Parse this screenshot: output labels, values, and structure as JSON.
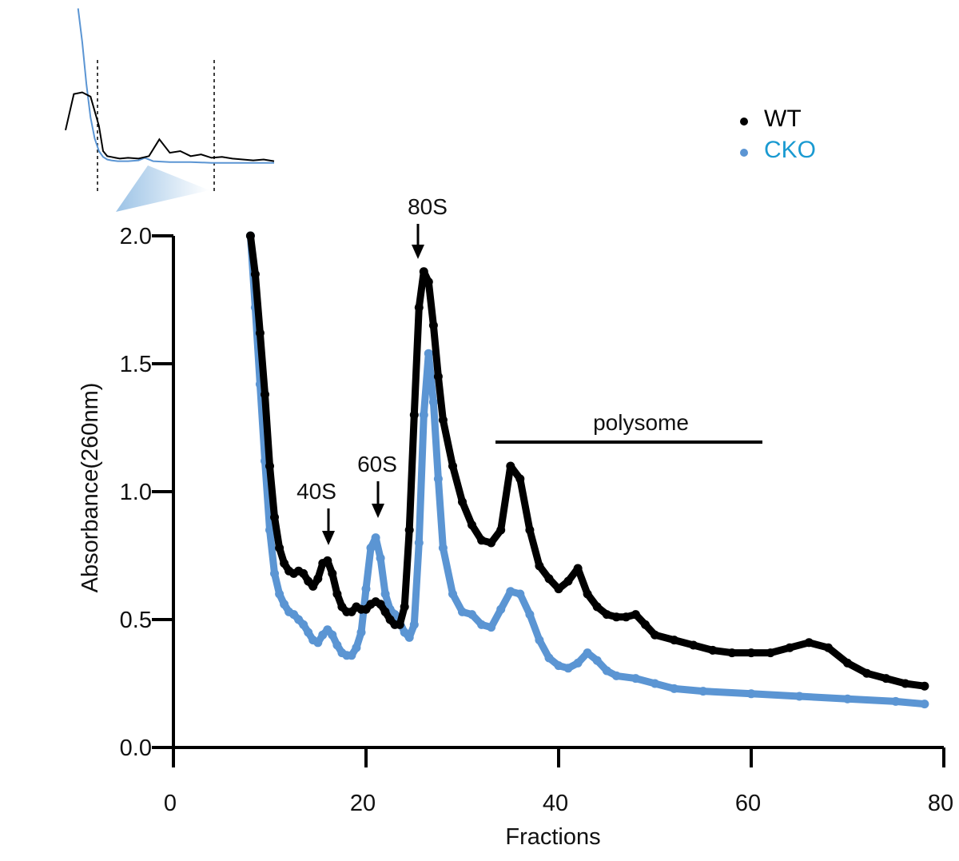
{
  "chart_data": {
    "type": "line",
    "title": "",
    "xlabel": "Fractions",
    "ylabel": "Absorbance(260nm)",
    "xlim": [
      0,
      80
    ],
    "ylim": [
      0,
      2.0
    ],
    "x_ticks": [
      0,
      20,
      40,
      60,
      80
    ],
    "y_ticks": [
      0.0,
      0.5,
      1.0,
      1.5,
      2.0
    ],
    "x_tick_labels": [
      "0",
      "20",
      "40",
      "60",
      "80"
    ],
    "y_tick_labels": [
      "0.0",
      "0.5",
      "1.0",
      "1.5",
      "2.0"
    ],
    "grid": false,
    "legend_position": "top-right",
    "series": [
      {
        "name": "WT",
        "color": "#000000",
        "x": [
          8,
          8.5,
          9,
          9.5,
          10,
          10.5,
          11,
          11.5,
          12,
          12.5,
          13,
          13.5,
          14,
          14.5,
          15,
          15.5,
          16,
          16.5,
          17,
          17.5,
          18,
          18.5,
          19,
          19.5,
          20,
          20.5,
          21,
          21.5,
          22,
          22.5,
          23,
          23.5,
          24,
          24.5,
          25,
          25.5,
          26,
          26.5,
          27,
          27.5,
          28,
          29,
          30,
          31,
          32,
          33,
          34,
          35,
          36,
          37,
          38,
          39,
          40,
          41,
          42,
          43,
          44,
          45,
          46,
          47,
          48,
          49,
          50,
          52,
          54,
          56,
          58,
          60,
          62,
          64,
          66,
          68,
          70,
          72,
          74,
          76,
          78
        ],
        "y": [
          2.0,
          1.85,
          1.62,
          1.38,
          1.1,
          0.9,
          0.78,
          0.72,
          0.69,
          0.68,
          0.69,
          0.68,
          0.65,
          0.63,
          0.66,
          0.72,
          0.73,
          0.68,
          0.6,
          0.55,
          0.53,
          0.53,
          0.55,
          0.54,
          0.54,
          0.56,
          0.57,
          0.56,
          0.53,
          0.5,
          0.48,
          0.48,
          0.55,
          0.85,
          1.3,
          1.72,
          1.86,
          1.82,
          1.65,
          1.45,
          1.28,
          1.1,
          0.96,
          0.87,
          0.81,
          0.8,
          0.85,
          1.1,
          1.05,
          0.85,
          0.71,
          0.66,
          0.62,
          0.65,
          0.7,
          0.6,
          0.55,
          0.52,
          0.51,
          0.51,
          0.52,
          0.48,
          0.44,
          0.42,
          0.4,
          0.38,
          0.37,
          0.37,
          0.37,
          0.39,
          0.41,
          0.39,
          0.33,
          0.29,
          0.27,
          0.25,
          0.24
        ]
      },
      {
        "name": "CKO",
        "color": "#5b95d3",
        "x": [
          8,
          8.5,
          9,
          9.5,
          10,
          10.5,
          11,
          11.5,
          12,
          12.5,
          13,
          13.5,
          14,
          14.5,
          15,
          15.5,
          16,
          16.5,
          17,
          17.5,
          18,
          18.5,
          19,
          19.5,
          20,
          20.5,
          21,
          21.5,
          22,
          22.5,
          23,
          23.5,
          24,
          24.5,
          25,
          25.5,
          26,
          26.5,
          27,
          27.5,
          28,
          29,
          30,
          31,
          32,
          33,
          34,
          35,
          36,
          37,
          38,
          39,
          40,
          41,
          42,
          43,
          44,
          45,
          46,
          48,
          50,
          52,
          55,
          60,
          65,
          70,
          75,
          78
        ],
        "y": [
          2.0,
          1.72,
          1.42,
          1.12,
          0.85,
          0.68,
          0.6,
          0.56,
          0.53,
          0.52,
          0.5,
          0.48,
          0.45,
          0.42,
          0.41,
          0.44,
          0.46,
          0.44,
          0.4,
          0.37,
          0.36,
          0.36,
          0.39,
          0.45,
          0.62,
          0.78,
          0.82,
          0.74,
          0.6,
          0.54,
          0.52,
          0.49,
          0.45,
          0.43,
          0.48,
          0.8,
          1.3,
          1.54,
          1.35,
          1.05,
          0.78,
          0.6,
          0.53,
          0.52,
          0.48,
          0.47,
          0.54,
          0.61,
          0.6,
          0.52,
          0.42,
          0.35,
          0.32,
          0.31,
          0.33,
          0.37,
          0.34,
          0.3,
          0.28,
          0.27,
          0.25,
          0.23,
          0.22,
          0.21,
          0.2,
          0.19,
          0.18,
          0.17
        ]
      }
    ],
    "annotations": [
      {
        "label": "40S",
        "x": 16.5,
        "y": 0.73
      },
      {
        "label": "60S",
        "x": 21.5,
        "y": 0.82
      },
      {
        "label": "80S",
        "x": 26,
        "y": 1.86
      },
      {
        "label": "polysome",
        "x_start": 34,
        "x_end": 62,
        "y": 1.19
      }
    ],
    "inset": {
      "description_free": true,
      "wt_x": [
        0,
        0.04,
        0.08,
        0.12,
        0.16,
        0.18,
        0.2,
        0.22,
        0.24,
        0.26,
        0.3,
        0.35,
        0.4,
        0.45,
        0.5,
        0.55,
        0.6,
        0.65,
        0.7,
        0.75,
        0.8,
        0.85,
        0.9,
        0.95,
        1.0
      ],
      "wt_y": [
        0.45,
        0.88,
        0.9,
        0.85,
        0.5,
        0.2,
        0.14,
        0.13,
        0.12,
        0.11,
        0.12,
        0.11,
        0.14,
        0.34,
        0.18,
        0.2,
        0.14,
        0.16,
        0.12,
        0.13,
        0.11,
        0.1,
        0.09,
        0.1,
        0.08
      ],
      "cko_x": [
        0.06,
        0.08,
        0.1,
        0.12,
        0.14,
        0.16,
        0.18,
        0.2,
        0.22,
        0.25,
        0.3,
        0.35,
        0.38,
        0.42,
        0.5,
        0.6,
        0.7,
        0.8,
        0.9,
        1.0
      ],
      "cko_y": [
        1.9,
        1.5,
        1.0,
        0.6,
        0.35,
        0.2,
        0.13,
        0.1,
        0.09,
        0.08,
        0.08,
        0.09,
        0.12,
        0.08,
        0.07,
        0.07,
        0.06,
        0.06,
        0.06,
        0.06
      ]
    }
  }
}
